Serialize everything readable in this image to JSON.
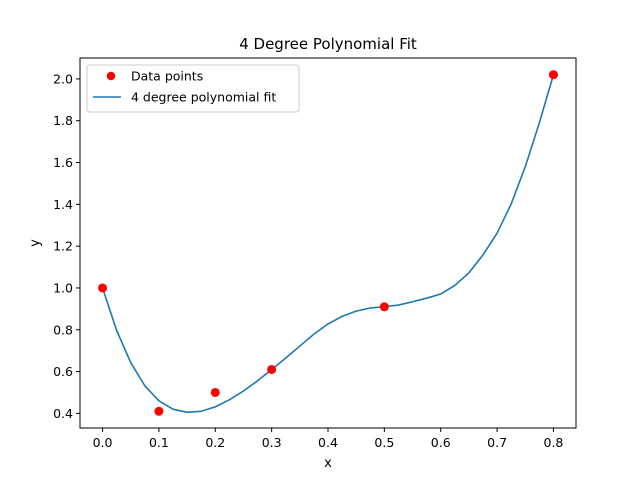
{
  "chart_data": {
    "type": "scatter",
    "title": "4 Degree Polynomial Fit",
    "xlabel": "x",
    "ylabel": "y",
    "xlim": [
      -0.04,
      0.84
    ],
    "ylim": [
      0.33,
      2.1
    ],
    "xticks": [
      0.0,
      0.1,
      0.2,
      0.3,
      0.4,
      0.5,
      0.6,
      0.7,
      0.8
    ],
    "xtick_labels": [
      "0.0",
      "0.1",
      "0.2",
      "0.3",
      "0.4",
      "0.5",
      "0.6",
      "0.7",
      "0.8"
    ],
    "yticks": [
      0.4,
      0.6,
      0.8,
      1.0,
      1.2,
      1.4,
      1.6,
      1.8,
      2.0
    ],
    "ytick_labels": [
      "0.4",
      "0.6",
      "0.8",
      "1.0",
      "1.2",
      "1.4",
      "1.6",
      "1.8",
      "2.0"
    ],
    "grid": false,
    "legend_position": "top-left",
    "series": [
      {
        "name": "Data points",
        "kind": "scatter",
        "color": "#ff0000",
        "x": [
          0.0,
          0.1,
          0.2,
          0.3,
          0.5,
          0.8
        ],
        "y": [
          1.0,
          0.41,
          0.5,
          0.61,
          0.91,
          2.02
        ]
      },
      {
        "name": "4 degree polynomial fit",
        "kind": "line",
        "color": "#1f77b4",
        "x": [
          0.0,
          0.025,
          0.05,
          0.075,
          0.1,
          0.125,
          0.15,
          0.175,
          0.2,
          0.225,
          0.25,
          0.275,
          0.3,
          0.325,
          0.35,
          0.375,
          0.4,
          0.425,
          0.45,
          0.475,
          0.5,
          0.525,
          0.55,
          0.575,
          0.6,
          0.625,
          0.65,
          0.675,
          0.7,
          0.725,
          0.75,
          0.775,
          0.8
        ],
        "y": [
          1.0,
          0.797,
          0.643,
          0.532,
          0.46,
          0.42,
          0.405,
          0.41,
          0.431,
          0.465,
          0.507,
          0.556,
          0.609,
          0.665,
          0.722,
          0.779,
          0.828,
          0.864,
          0.889,
          0.904,
          0.91,
          0.918,
          0.934,
          0.951,
          0.971,
          1.012,
          1.072,
          1.158,
          1.262,
          1.402,
          1.58,
          1.79,
          2.02
        ]
      }
    ]
  }
}
